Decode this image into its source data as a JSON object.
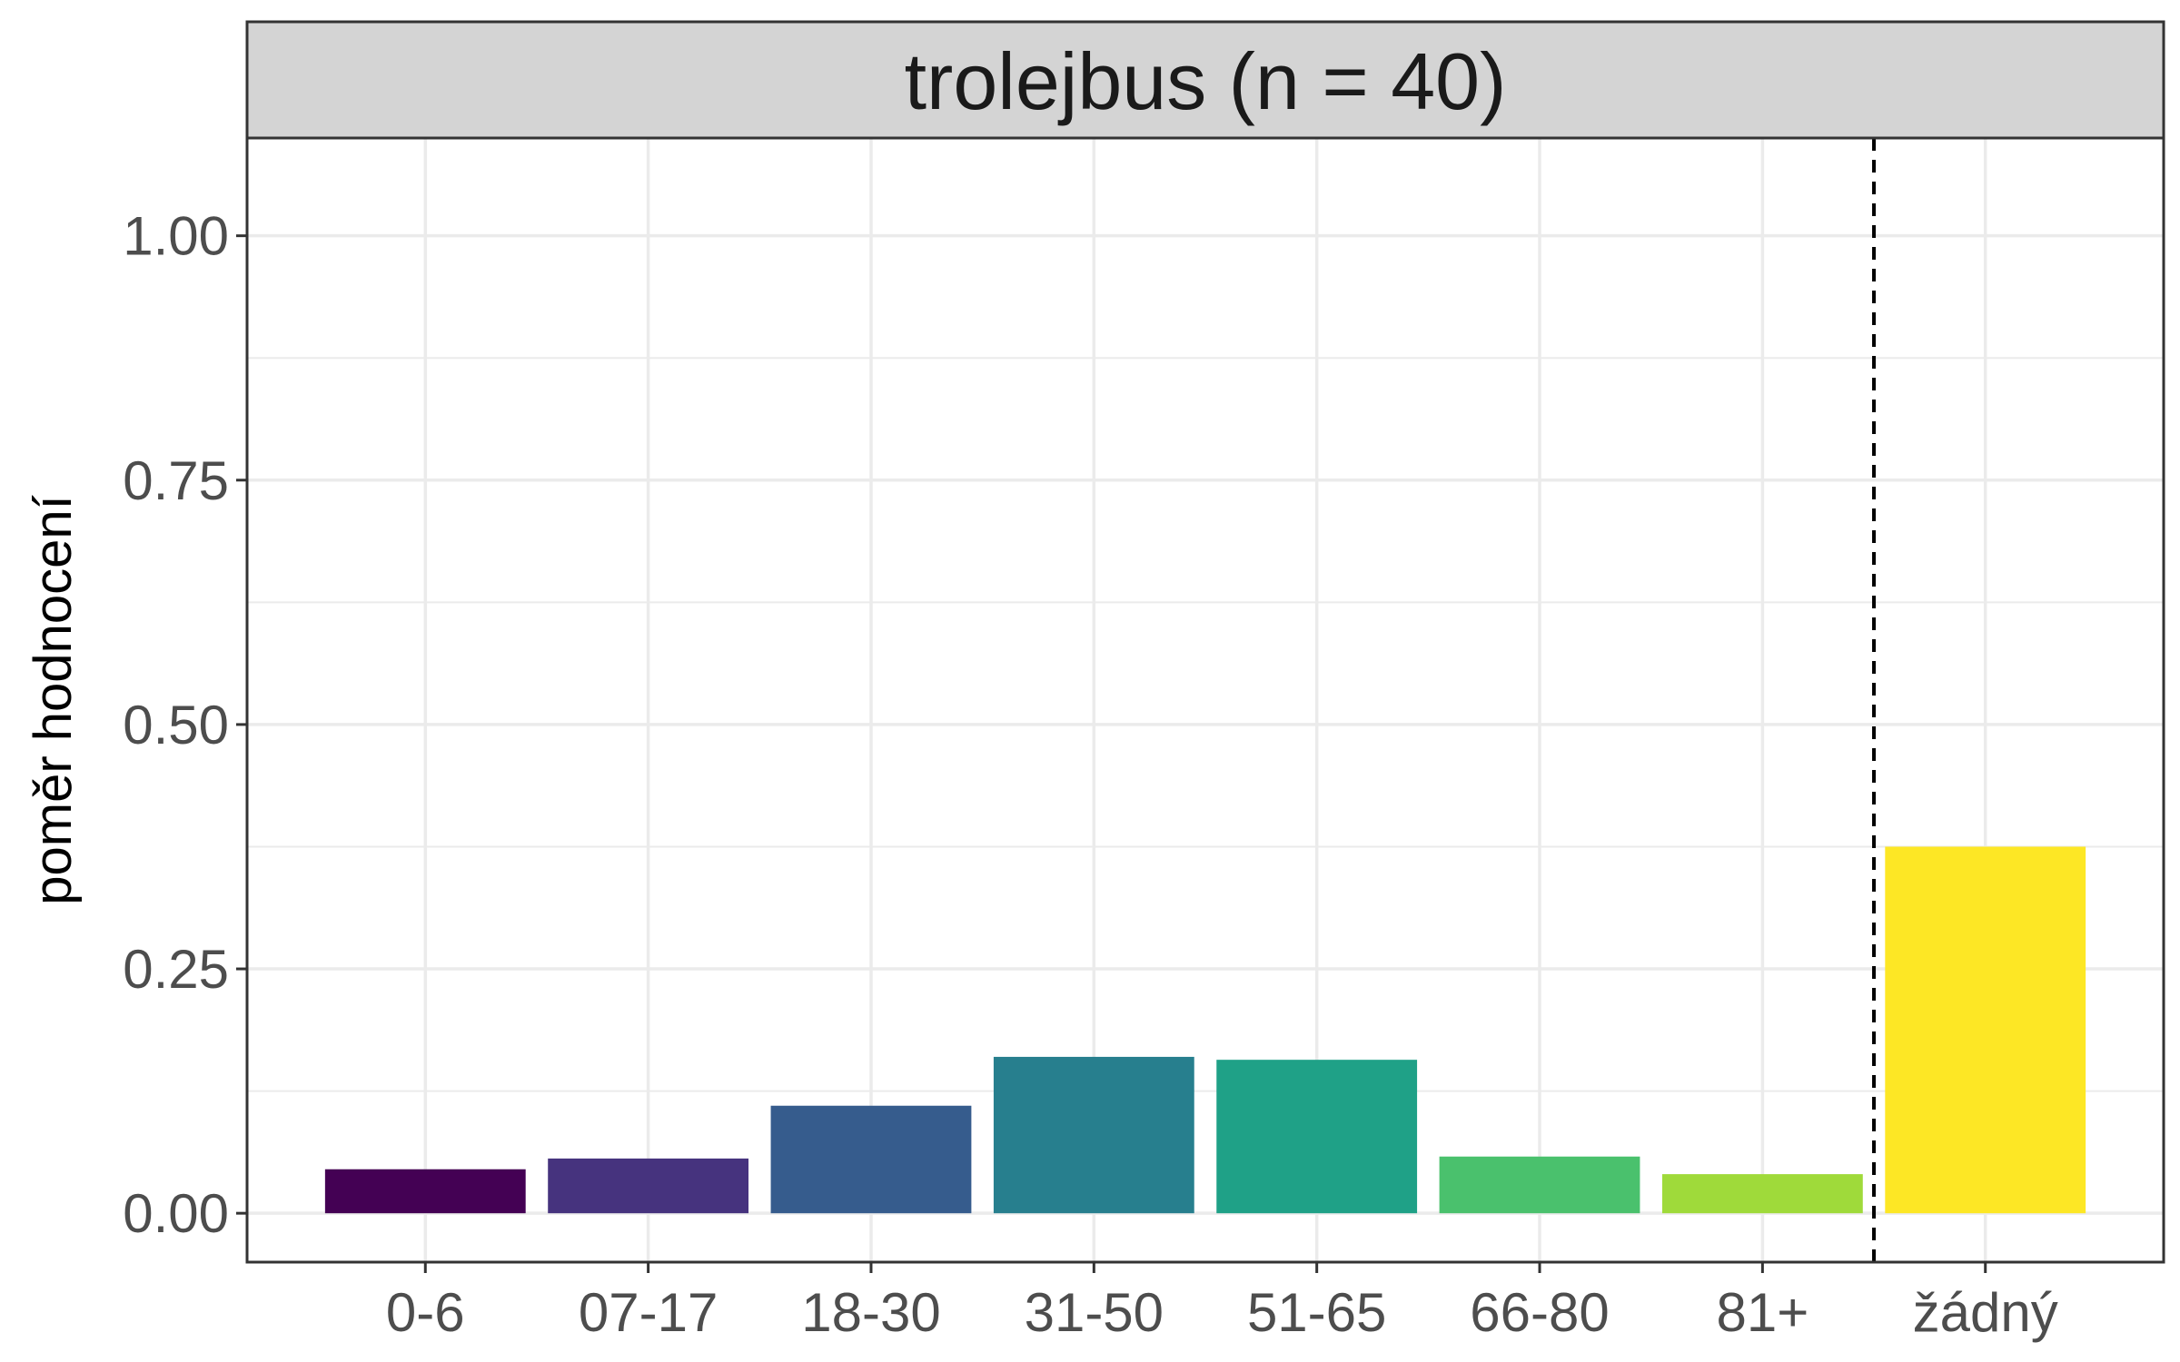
{
  "chart_data": {
    "type": "bar",
    "facet_title": "trolejbus (n = 40)",
    "ylabel": "poměr hodnocení",
    "xlabel": "",
    "categories": [
      "0-6",
      "07-17",
      "18-30",
      "31-50",
      "51-65",
      "66-80",
      "81+",
      "žádný"
    ],
    "values": [
      0.045,
      0.056,
      0.11,
      0.16,
      0.157,
      0.058,
      0.04,
      0.375
    ],
    "colors": [
      "#440154",
      "#46337E",
      "#365C8D",
      "#277F8E",
      "#1FA187",
      "#4AC16D",
      "#9FDA3A",
      "#FDE725"
    ],
    "ylim": [
      -0.05,
      1.1
    ],
    "yticks": [
      0.0,
      0.25,
      0.5,
      0.75,
      1.0
    ],
    "ytick_labels": [
      "0.00",
      "0.25",
      "0.50",
      "0.75",
      "1.00"
    ],
    "separator_after_index": 6,
    "grid": true,
    "panel_background": "#ffffff",
    "strip_background": "#d4d4d4",
    "grid_color": "#ebebeb"
  }
}
